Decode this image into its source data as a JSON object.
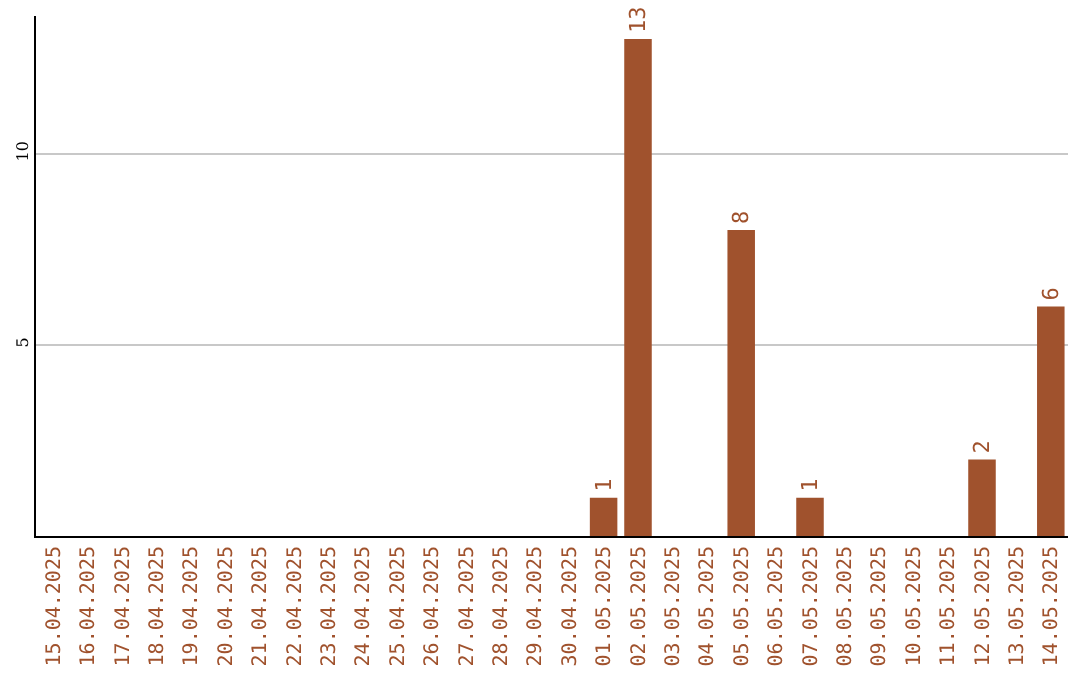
{
  "chart_data": {
    "type": "bar",
    "categories": [
      "15.04.2025",
      "16.04.2025",
      "17.04.2025",
      "18.04.2025",
      "19.04.2025",
      "20.04.2025",
      "21.04.2025",
      "22.04.2025",
      "23.04.2025",
      "24.04.2025",
      "25.04.2025",
      "26.04.2025",
      "27.04.2025",
      "28.04.2025",
      "29.04.2025",
      "30.04.2025",
      "01.05.2025",
      "02.05.2025",
      "03.05.2025",
      "04.05.2025",
      "05.05.2025",
      "06.05.2025",
      "07.05.2025",
      "08.05.2025",
      "09.05.2025",
      "10.05.2025",
      "11.05.2025",
      "12.05.2025",
      "13.05.2025",
      "14.05.2025"
    ],
    "values": [
      0,
      0,
      0,
      0,
      0,
      0,
      0,
      0,
      0,
      0,
      0,
      0,
      0,
      0,
      0,
      0,
      1,
      13,
      0,
      0,
      8,
      0,
      1,
      0,
      0,
      0,
      0,
      2,
      0,
      6
    ],
    "value_labels": [
      null,
      null,
      null,
      null,
      null,
      null,
      null,
      null,
      null,
      null,
      null,
      null,
      null,
      null,
      null,
      null,
      "1",
      "13",
      null,
      null,
      "8",
      null,
      "1",
      null,
      null,
      null,
      null,
      "2",
      null,
      "6"
    ],
    "color": "#a0522d",
    "ylim": [
      0,
      13.6
    ],
    "yticks": [
      5,
      10
    ],
    "grid": "y"
  }
}
